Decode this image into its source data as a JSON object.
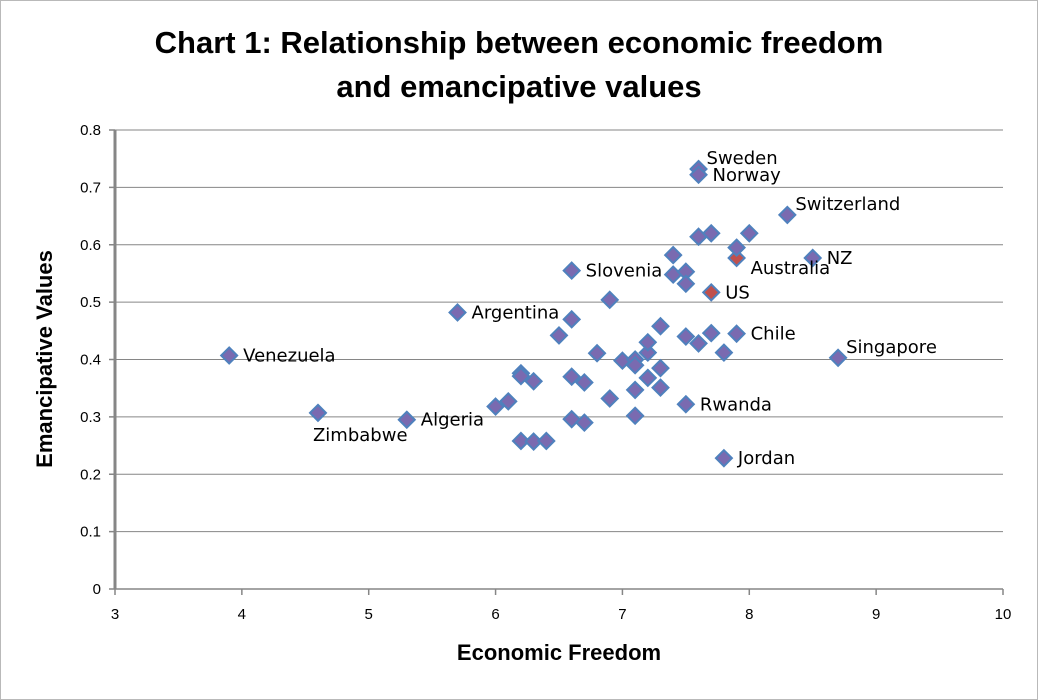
{
  "chart_data": {
    "type": "scatter",
    "title_lines": [
      "Chart 1: Relationship between economic freedom",
      "and emancipative values"
    ],
    "xlabel": "Economic Freedom",
    "ylabel": "Emancipative Values",
    "xlim": [
      3,
      10
    ],
    "ylim": [
      0,
      0.8
    ],
    "x_ticks": [
      3,
      4,
      5,
      6,
      7,
      8,
      9,
      10
    ],
    "y_ticks": [
      "0",
      "0.1",
      "0.2",
      "0.3",
      "0.4",
      "0.5",
      "0.6",
      "0.7",
      "0.8"
    ],
    "grid": "horizontal",
    "colors": {
      "marker": "#7a6ab0",
      "marker_border": "#4f81bd",
      "highlight": "#c0504d"
    },
    "points": [
      {
        "x": 3.9,
        "y": 0.407,
        "label": "Venezuela",
        "label_pos": "right"
      },
      {
        "x": 4.6,
        "y": 0.307,
        "label": "Zimbabwe",
        "label_pos": "below"
      },
      {
        "x": 5.3,
        "y": 0.295,
        "label": "Algeria",
        "label_pos": "right"
      },
      {
        "x": 5.7,
        "y": 0.482,
        "label": "Argentina",
        "label_pos": "right"
      },
      {
        "x": 6.6,
        "y": 0.555,
        "label": "Slovenia",
        "label_pos": "right"
      },
      {
        "x": 7.6,
        "y": 0.732,
        "label": "Sweden",
        "label_pos": "above-right"
      },
      {
        "x": 7.6,
        "y": 0.722,
        "label": "Norway",
        "label_pos": "right"
      },
      {
        "x": 8.3,
        "y": 0.652,
        "label": "Switzerland",
        "label_pos": "above-right"
      },
      {
        "x": 8.5,
        "y": 0.577,
        "label": "NZ",
        "label_pos": "right"
      },
      {
        "x": 7.9,
        "y": 0.577,
        "label": "Australia",
        "label_pos": "below-right",
        "highlight": true
      },
      {
        "x": 7.7,
        "y": 0.517,
        "label": "US",
        "label_pos": "right",
        "highlight": true
      },
      {
        "x": 7.9,
        "y": 0.445,
        "label": "Chile",
        "label_pos": "right"
      },
      {
        "x": 8.7,
        "y": 0.403,
        "label": "Singapore",
        "label_pos": "above-right"
      },
      {
        "x": 7.5,
        "y": 0.322,
        "label": "Rwanda",
        "label_pos": "right"
      },
      {
        "x": 7.8,
        "y": 0.228,
        "label": "Jordan",
        "label_pos": "right"
      },
      {
        "x": 6.6,
        "y": 0.47
      },
      {
        "x": 6.9,
        "y": 0.504
      },
      {
        "x": 6.5,
        "y": 0.442
      },
      {
        "x": 6.8,
        "y": 0.411
      },
      {
        "x": 6.2,
        "y": 0.376
      },
      {
        "x": 6.2,
        "y": 0.371
      },
      {
        "x": 6.3,
        "y": 0.362
      },
      {
        "x": 6.6,
        "y": 0.37
      },
      {
        "x": 6.7,
        "y": 0.36
      },
      {
        "x": 6.1,
        "y": 0.327
      },
      {
        "x": 6.0,
        "y": 0.318
      },
      {
        "x": 6.6,
        "y": 0.296
      },
      {
        "x": 6.7,
        "y": 0.29
      },
      {
        "x": 6.9,
        "y": 0.332
      },
      {
        "x": 6.2,
        "y": 0.258
      },
      {
        "x": 6.3,
        "y": 0.257
      },
      {
        "x": 6.4,
        "y": 0.258
      },
      {
        "x": 7.0,
        "y": 0.398
      },
      {
        "x": 7.1,
        "y": 0.4
      },
      {
        "x": 7.1,
        "y": 0.39
      },
      {
        "x": 7.2,
        "y": 0.412
      },
      {
        "x": 7.2,
        "y": 0.43
      },
      {
        "x": 7.3,
        "y": 0.458
      },
      {
        "x": 7.3,
        "y": 0.385
      },
      {
        "x": 7.2,
        "y": 0.368
      },
      {
        "x": 7.1,
        "y": 0.347
      },
      {
        "x": 7.3,
        "y": 0.351
      },
      {
        "x": 7.1,
        "y": 0.302
      },
      {
        "x": 7.5,
        "y": 0.44
      },
      {
        "x": 7.6,
        "y": 0.428
      },
      {
        "x": 7.7,
        "y": 0.446
      },
      {
        "x": 7.8,
        "y": 0.412
      },
      {
        "x": 7.4,
        "y": 0.582
      },
      {
        "x": 7.4,
        "y": 0.548
      },
      {
        "x": 7.5,
        "y": 0.553
      },
      {
        "x": 7.5,
        "y": 0.532
      },
      {
        "x": 7.6,
        "y": 0.614
      },
      {
        "x": 7.7,
        "y": 0.62
      },
      {
        "x": 7.9,
        "y": 0.595
      },
      {
        "x": 8.0,
        "y": 0.62
      }
    ]
  }
}
